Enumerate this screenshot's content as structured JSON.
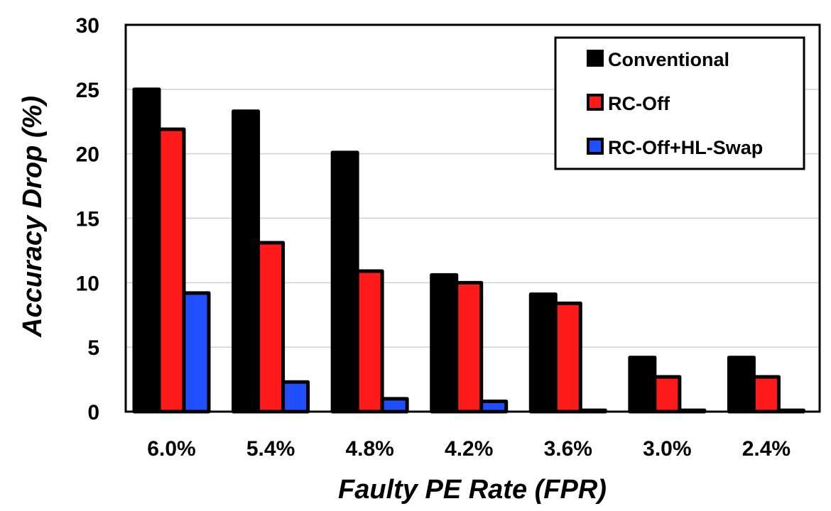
{
  "chart_data": {
    "type": "bar",
    "categories": [
      "6.0%",
      "5.4%",
      "4.8%",
      "4.2%",
      "3.6%",
      "3.0%",
      "2.4%"
    ],
    "series": [
      {
        "name": "Conventional",
        "color": "#000000",
        "values": [
          25.0,
          23.3,
          20.1,
          10.6,
          9.1,
          4.2,
          4.2
        ]
      },
      {
        "name": "RC-Off",
        "color": "#ff1a1a",
        "values": [
          21.9,
          13.1,
          10.9,
          10.0,
          8.4,
          2.7,
          2.7
        ]
      },
      {
        "name": "RC-Off+HL-Swap",
        "color": "#1f4fff",
        "values": [
          9.2,
          2.3,
          1.0,
          0.8,
          0.1,
          0.1,
          0.1
        ]
      }
    ],
    "xlabel": "Faulty PE Rate (FPR)",
    "ylabel": "Accuracy Drop (%)",
    "ylim": [
      0,
      30
    ],
    "yticks": [
      "0",
      "5",
      "10",
      "15",
      "20",
      "25",
      "30"
    ],
    "grid": "horizontal",
    "legend_position": "top-right"
  }
}
